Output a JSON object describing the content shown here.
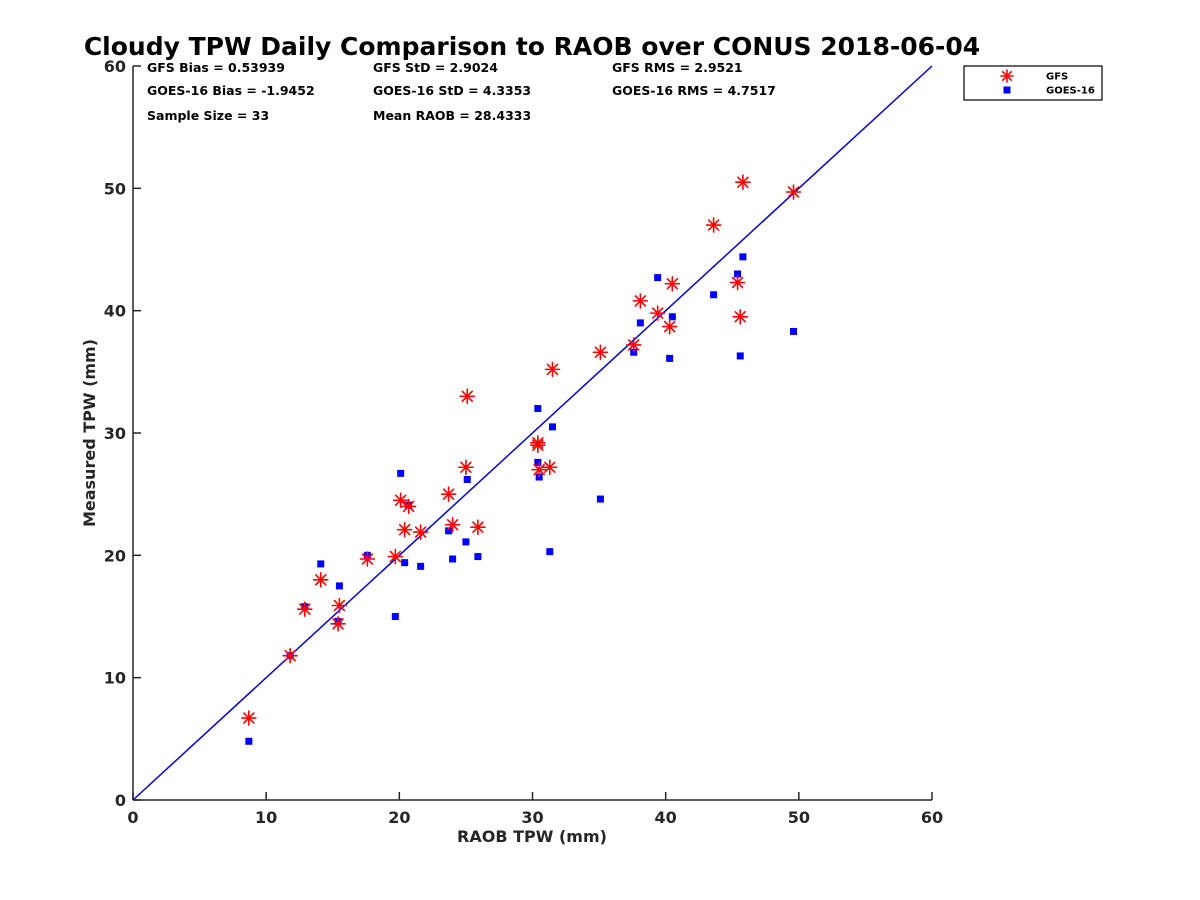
{
  "chart_data": {
    "type": "scatter",
    "title": "Cloudy TPW Daily Comparison to RAOB over CONUS 2018-06-04",
    "xlabel": "RAOB TPW (mm)",
    "ylabel": "Measured TPW (mm)",
    "xlim": [
      0,
      60
    ],
    "ylim": [
      0,
      60
    ],
    "xticks": [
      "0",
      "10",
      "20",
      "30",
      "40",
      "50",
      "60"
    ],
    "yticks": [
      "0",
      "10",
      "20",
      "30",
      "40",
      "50",
      "60"
    ],
    "grid": false,
    "legend_position": "outside-top-right",
    "reference_line": {
      "x": [
        0,
        60
      ],
      "y": [
        0,
        60
      ],
      "color": "#0000dd"
    },
    "stats": [
      [
        "GFS Bias = 0.53939",
        "GFS StD = 2.9024",
        "GFS RMS = 2.9521"
      ],
      [
        "GOES-16 Bias = -1.9452",
        "GOES-16 StD = 4.3353",
        "GOES-16 RMS = 4.7517"
      ],
      [
        "Sample Size = 33",
        "Mean RAOB = 28.4333"
      ]
    ],
    "series": [
      {
        "name": "GFS",
        "marker": "asterisk",
        "color": "#ff0000",
        "x": [
          8.7,
          11.8,
          12.9,
          14.1,
          15.5,
          15.4,
          17.6,
          19.7,
          20.1,
          20.4,
          20.7,
          21.6,
          23.7,
          24.0,
          25.0,
          25.1,
          25.9,
          30.4,
          30.4,
          30.5,
          31.3,
          31.5,
          35.1,
          37.6,
          38.1,
          39.4,
          40.3,
          40.5,
          43.6,
          45.4,
          45.6,
          45.8,
          49.6
        ],
        "y": [
          6.7,
          11.8,
          15.6,
          18.0,
          15.9,
          14.4,
          19.7,
          19.9,
          24.5,
          22.1,
          24.0,
          21.9,
          25.0,
          22.5,
          27.2,
          33.0,
          22.3,
          29.2,
          29.0,
          27.0,
          27.2,
          35.2,
          36.6,
          37.2,
          40.8,
          39.8,
          38.7,
          42.2,
          47.0,
          42.3,
          39.5,
          50.5,
          49.7
        ]
      },
      {
        "name": "GOES-16",
        "marker": "square",
        "color": "#0000ff",
        "x": [
          8.7,
          11.8,
          12.9,
          14.1,
          15.5,
          15.4,
          17.6,
          19.7,
          20.1,
          20.4,
          20.7,
          21.6,
          23.7,
          24.0,
          25.0,
          25.1,
          25.9,
          30.4,
          30.4,
          30.5,
          31.3,
          31.5,
          35.1,
          37.6,
          38.1,
          39.4,
          40.3,
          40.5,
          43.6,
          45.4,
          45.6,
          45.8,
          49.6
        ],
        "y": [
          4.8,
          11.8,
          15.8,
          19.3,
          17.5,
          14.6,
          20.0,
          15.0,
          26.7,
          19.4,
          24.1,
          19.1,
          22.0,
          19.7,
          21.1,
          26.2,
          19.9,
          32.0,
          27.6,
          26.4,
          20.3,
          30.5,
          24.6,
          36.6,
          39.0,
          42.7,
          36.1,
          39.5,
          41.3,
          43.0,
          36.3,
          44.4,
          38.3
        ]
      }
    ]
  }
}
